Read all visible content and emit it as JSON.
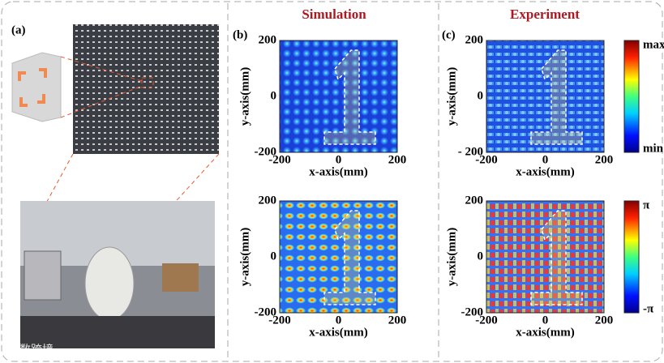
{
  "panel_a": {
    "label": "(a)"
  },
  "panel_b": {
    "label": "(b)",
    "title": "Simulation",
    "plots": [
      {
        "x_label": "x-axis(mm)",
        "y_label": "y-axis(mm)",
        "x_ticks": [
          "-200",
          "0",
          "200"
        ],
        "y_ticks": [
          "200",
          "0",
          "-200"
        ]
      },
      {
        "x_label": "x-axis(mm)",
        "y_label": "y-axis(mm)",
        "x_ticks": [
          "-200",
          "0",
          "200"
        ],
        "y_ticks": [
          "200",
          "0",
          "-200"
        ]
      }
    ]
  },
  "panel_c": {
    "label": "(c)",
    "title": "Experiment",
    "plots": [
      {
        "x_label": "x-axis(mm)",
        "y_label": "y-axis(mm)",
        "x_ticks": [
          "-200",
          "0",
          "200"
        ],
        "y_ticks": [
          "200",
          "0",
          "- 200"
        ]
      },
      {
        "x_label": "x-axis(mm)",
        "y_label": "y-axis(mm)",
        "x_ticks": [
          "-200",
          "0",
          "200"
        ],
        "y_ticks": [
          "200",
          "0",
          "-200"
        ]
      }
    ],
    "colorbars": [
      {
        "top": "max",
        "bottom": "min"
      },
      {
        "top": "π",
        "bottom": "-π"
      }
    ]
  },
  "watermark": "大数跨境"
}
